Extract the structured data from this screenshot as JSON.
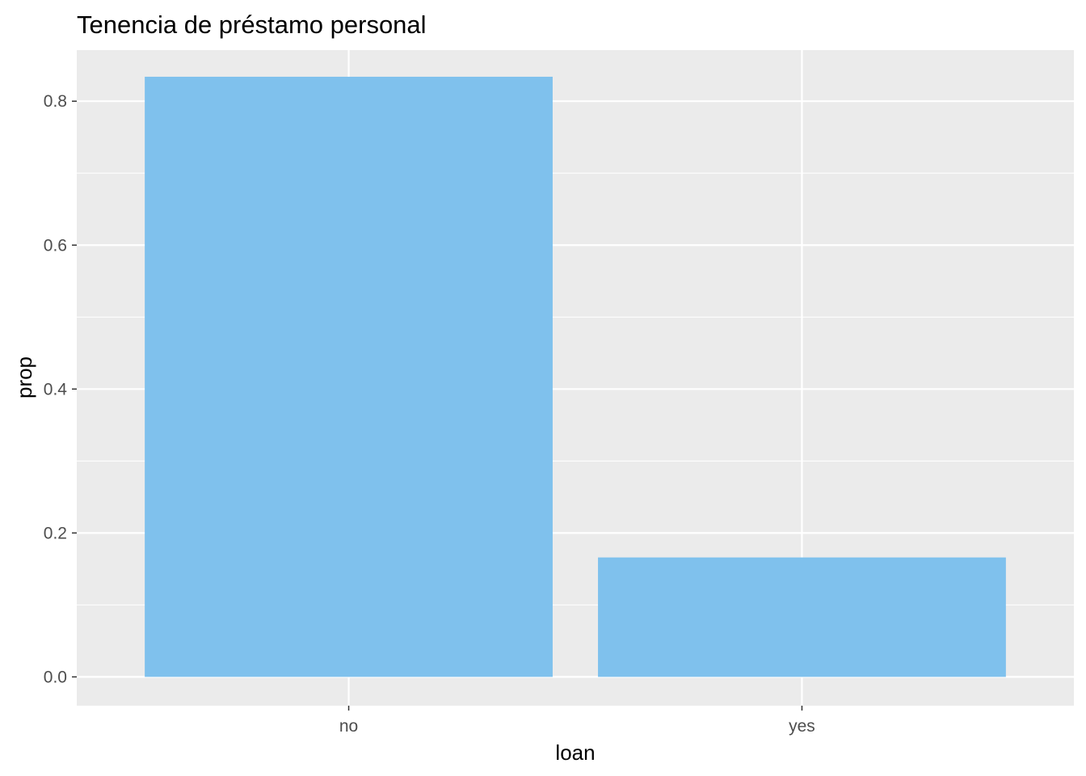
{
  "chart_data": {
    "type": "bar",
    "title": "Tenencia de préstamo personal",
    "xlabel": "loan",
    "ylabel": "prop",
    "categories": [
      "no",
      "yes"
    ],
    "values": [
      0.834,
      0.166
    ],
    "ylim": [
      -0.04,
      0.871
    ],
    "yticks": [
      0.0,
      0.2,
      0.4,
      0.6,
      0.8
    ],
    "ytick_labels": [
      "0.0",
      "0.2",
      "0.4",
      "0.6",
      "0.8"
    ],
    "grid": true,
    "legend": "none",
    "colors": {
      "bar": "#7FC1ED",
      "panel": "#EBEBEB",
      "grid": "#FFFFFF",
      "tick_text": "#4D4D4D",
      "tick_mark": "#333333"
    }
  }
}
